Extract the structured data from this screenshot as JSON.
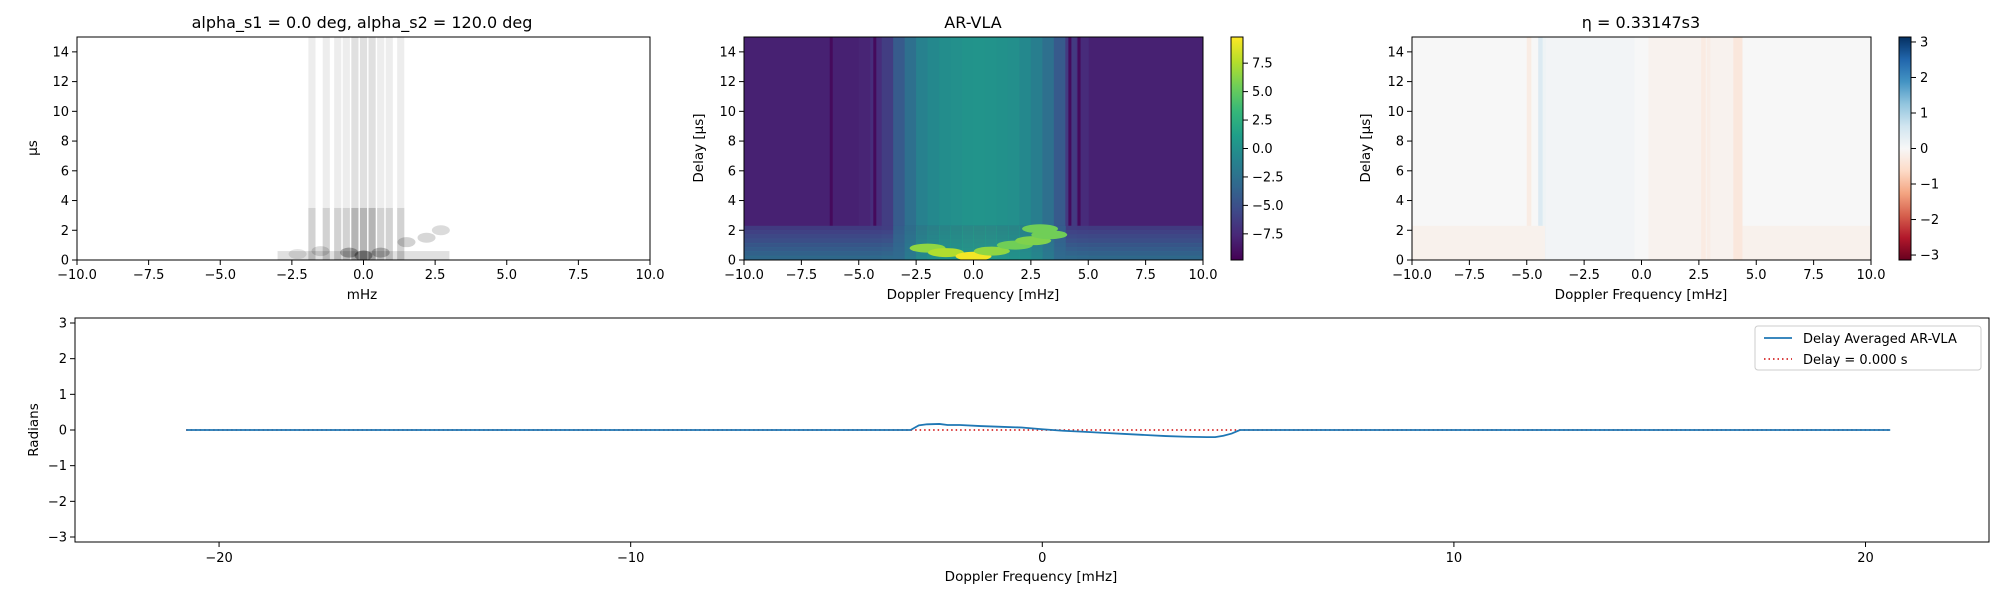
{
  "chart_data": [
    {
      "type": "heatmap",
      "title": "alpha_s1 = 0.0 deg, alpha_s2 = 120.0 deg",
      "xlabel": "mHz",
      "ylabel": "µs",
      "xlim": [
        -10,
        10
      ],
      "ylim": [
        0,
        15
      ],
      "xticks": [
        "−10.0",
        "−7.5",
        "−5.0",
        "−2.5",
        "0.0",
        "2.5",
        "5.0",
        "7.5",
        "10.0"
      ],
      "yticks": [
        "0",
        "2",
        "4",
        "6",
        "8",
        "10",
        "12",
        "14"
      ],
      "colormap": "greys",
      "colorbar": false,
      "bright_columns_mhz": [
        -1.8,
        -1.3,
        -0.9,
        -0.6,
        -0.3,
        0.0,
        0.3,
        0.6,
        0.9,
        1.3
      ],
      "features": [
        {
          "x": 0.0,
          "y": 0.3,
          "strength": 1.0
        },
        {
          "x": -0.5,
          "y": 0.5,
          "strength": 0.8
        },
        {
          "x": 0.6,
          "y": 0.5,
          "strength": 0.7
        },
        {
          "x": 1.5,
          "y": 1.2,
          "strength": 0.5
        },
        {
          "x": 2.2,
          "y": 1.5,
          "strength": 0.45
        },
        {
          "x": 2.7,
          "y": 2.0,
          "strength": 0.4
        },
        {
          "x": -1.5,
          "y": 0.6,
          "strength": 0.4
        },
        {
          "x": -2.3,
          "y": 0.4,
          "strength": 0.3
        }
      ]
    },
    {
      "type": "heatmap",
      "title": "AR-VLA",
      "xlabel": "Doppler Frequency [mHz]",
      "ylabel": "Delay [µs]",
      "xlim": [
        -10,
        10
      ],
      "ylim": [
        0,
        15
      ],
      "xticks": [
        "−10.0",
        "−7.5",
        "−5.0",
        "−2.5",
        "0.0",
        "2.5",
        "5.0",
        "7.5",
        "10.0"
      ],
      "yticks": [
        "0",
        "2",
        "4",
        "6",
        "8",
        "10",
        "12",
        "14"
      ],
      "colormap": "viridis",
      "colorbar_range": [
        -9.8,
        9.8
      ],
      "colorbar_ticks": [
        "7.5",
        "5.0",
        "2.5",
        "0.0",
        "−2.5",
        "−5.0",
        "−7.5"
      ],
      "colorbar_tick_values": [
        7.5,
        5.0,
        2.5,
        0.0,
        -2.5,
        -5.0,
        -7.5
      ],
      "low_delay_band_us": 2.3,
      "spine_columns_mhz": [
        -5.0,
        -4.5,
        -4.0,
        -3.5,
        -3.0,
        -2.5,
        -2.0,
        -1.5,
        -1.0,
        -0.5,
        0.0,
        0.5,
        1.0,
        1.5,
        2.0,
        2.5,
        3.0,
        3.5,
        4.0,
        4.5
      ],
      "spine_values": [
        -7.8,
        -7.3,
        -6.3,
        -4.2,
        -2.6,
        -1.2,
        -0.6,
        -0.2,
        0.0,
        0.2,
        0.3,
        0.2,
        0.1,
        -0.1,
        -0.6,
        -1.4,
        -2.6,
        -4.3,
        -6.5,
        -7.4
      ],
      "background_value": -8.0,
      "dark_lines_mhz": [
        -6.2,
        -4.3,
        4.2,
        4.6
      ],
      "blobs": [
        {
          "x": -2.0,
          "y": 0.8,
          "v": 6.5
        },
        {
          "x": -1.2,
          "y": 0.5,
          "v": 7.5
        },
        {
          "x": 0.0,
          "y": 0.25,
          "v": 9.5
        },
        {
          "x": 0.8,
          "y": 0.6,
          "v": 6.5
        },
        {
          "x": 1.8,
          "y": 1.0,
          "v": 5.5
        },
        {
          "x": 2.6,
          "y": 1.3,
          "v": 6.0
        },
        {
          "x": 3.3,
          "y": 1.7,
          "v": 5.5
        },
        {
          "x": 2.9,
          "y": 2.1,
          "v": 5.5
        }
      ]
    },
    {
      "type": "heatmap",
      "title": "η = 0.33147s3",
      "xlabel": "Doppler Frequency [mHz]",
      "ylabel": "Delay [µs]",
      "xlim": [
        -10,
        10
      ],
      "ylim": [
        0,
        15
      ],
      "xticks": [
        "−10.0",
        "−7.5",
        "−5.0",
        "−2.5",
        "0.0",
        "2.5",
        "5.0",
        "7.5",
        "10.0"
      ],
      "yticks": [
        "0",
        "2",
        "4",
        "6",
        "8",
        "10",
        "12",
        "14"
      ],
      "colormap": "RdBu",
      "colorbar_range": [
        -3.14,
        3.14
      ],
      "colorbar_ticks": [
        "3",
        "2",
        "1",
        "0",
        "−1",
        "−2",
        "−3"
      ],
      "colorbar_tick_values": [
        3,
        2,
        1,
        0,
        -1,
        -2,
        -3
      ],
      "column_phase": [
        {
          "x0": -4.5,
          "x1": -4.3,
          "v": 0.45
        },
        {
          "x0": -4.3,
          "x1": -4.15,
          "v": 0.15
        },
        {
          "x0": -4.15,
          "x1": -0.3,
          "v": 0.09
        },
        {
          "x0": 0.3,
          "x1": 4.0,
          "v": -0.12
        },
        {
          "x0": 2.6,
          "x1": 2.8,
          "v": -0.28
        },
        {
          "x0": 2.85,
          "x1": 3.0,
          "v": -0.22
        },
        {
          "x0": 4.0,
          "x1": 4.4,
          "v": -0.35
        },
        {
          "x0": -5.0,
          "x1": -4.8,
          "v": -0.25
        }
      ],
      "low_band_phase": -0.14,
      "low_delay_band_us": 2.3
    },
    {
      "type": "line",
      "xlabel": "Doppler Frequency [mHz]",
      "ylabel": "Radians",
      "xlim": [
        -23.5,
        23
      ],
      "ylim": [
        -3.14,
        3.14
      ],
      "xticks": [
        -20,
        -10,
        0,
        10,
        20
      ],
      "xtick_labels": [
        "−20",
        "−10",
        "0",
        "10",
        "20"
      ],
      "yticks": [
        -3,
        -2,
        -1,
        0,
        1,
        2,
        3
      ],
      "ytick_labels": [
        "−3",
        "−2",
        "−1",
        "0",
        "1",
        "2",
        "3"
      ],
      "legend_position": "top-right",
      "series": [
        {
          "name": "Delay Averaged  AR-VLA",
          "color": "#1f77b4",
          "style": "solid",
          "x": [
            -20.8,
            -3.2,
            -3.0,
            -2.8,
            -2.5,
            -2.3,
            -2.0,
            -1.5,
            -1.0,
            -0.5,
            0,
            0.5,
            1.0,
            1.5,
            2.0,
            2.5,
            3.0,
            3.5,
            4.0,
            4.2,
            4.4,
            4.6,
            4.8,
            20.6
          ],
          "y": [
            0,
            0,
            0.13,
            0.16,
            0.17,
            0.14,
            0.14,
            0.11,
            0.09,
            0.07,
            0.02,
            -0.02,
            -0.05,
            -0.08,
            -0.11,
            -0.14,
            -0.17,
            -0.19,
            -0.2,
            -0.2,
            -0.16,
            -0.1,
            0,
            0
          ]
        },
        {
          "name": "Delay = 0.000 s",
          "color": "#d62728",
          "style": "dotted",
          "x": [
            -20.8,
            20.6
          ],
          "y": [
            0,
            0
          ]
        }
      ]
    }
  ]
}
